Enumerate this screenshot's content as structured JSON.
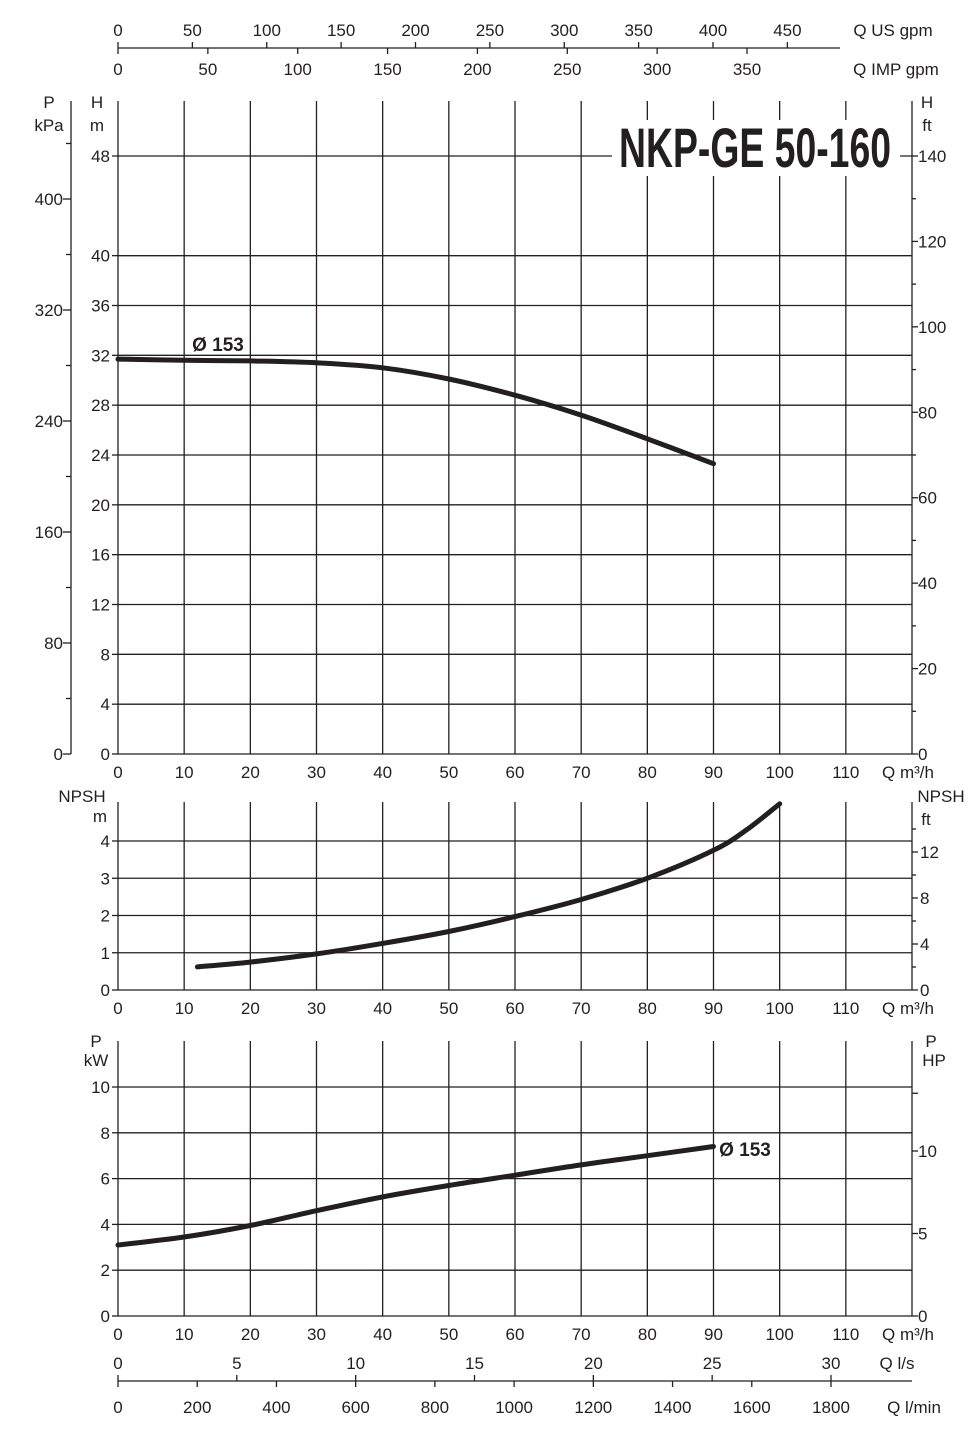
{
  "title": "NKP-GE 50-160",
  "top_axes": {
    "us_gpm": {
      "label": "Q US gpm",
      "ticks": [
        "0",
        "50",
        "100",
        "150",
        "200",
        "250",
        "300",
        "350",
        "400",
        "450"
      ]
    },
    "imp_gpm": {
      "label": "Q IMP gpm",
      "ticks": [
        "0",
        "50",
        "100",
        "150",
        "200",
        "250",
        "300",
        "350"
      ]
    }
  },
  "bottom_axes": {
    "ls": {
      "label": "Q l/s",
      "ticks": [
        "0",
        "5",
        "10",
        "15",
        "20",
        "25",
        "30"
      ]
    },
    "lmin": {
      "label": "Q l/min",
      "ticks": [
        "0",
        "200",
        "400",
        "600",
        "800",
        "1000",
        "1200",
        "1400",
        "1600",
        "1800"
      ]
    }
  },
  "colors": {
    "ink": "#231f20",
    "background": "#ffffff"
  },
  "chart_data": [
    {
      "type": "line",
      "name": "head",
      "xlabel": "Q m³/h",
      "ylabel": "H m",
      "x_ticks": [
        "0",
        "10",
        "20",
        "30",
        "40",
        "50",
        "60",
        "70",
        "80",
        "90",
        "100",
        "110"
      ],
      "xlim": [
        0,
        120
      ],
      "ylim": [
        0,
        48
      ],
      "y_ticks": [
        "0",
        "4",
        "8",
        "12",
        "16",
        "20",
        "24",
        "28",
        "32",
        "36",
        "40",
        "48"
      ],
      "grid": true,
      "secondary_left_axis": {
        "label_top": "P",
        "label_unit": "kPa",
        "ticks": [
          "0",
          "80",
          "160",
          "240",
          "320",
          "400"
        ]
      },
      "right_axis": {
        "label_top": "H",
        "label_unit": "ft",
        "ticks": [
          "0",
          "20",
          "40",
          "60",
          "80",
          "100",
          "120",
          "140"
        ]
      },
      "series": [
        {
          "name": "Ø 153",
          "x": [
            0,
            10,
            20,
            30,
            40,
            50,
            60,
            70,
            80,
            90
          ],
          "y": [
            31.7,
            31.6,
            31.55,
            31.4,
            31.0,
            30.1,
            28.8,
            27.2,
            25.3,
            23.3
          ]
        }
      ]
    },
    {
      "type": "line",
      "name": "npsh",
      "xlabel": "Q m³/h",
      "ylabel": "NPSH m",
      "x_ticks": [
        "0",
        "10",
        "20",
        "30",
        "40",
        "50",
        "60",
        "70",
        "80",
        "90",
        "100",
        "110"
      ],
      "xlim": [
        0,
        120
      ],
      "ylim": [
        0,
        5
      ],
      "y_ticks": [
        "0",
        "1",
        "2",
        "3",
        "4"
      ],
      "grid": true,
      "left_axis": {
        "label_top": "NPSH",
        "label_unit": "m"
      },
      "right_axis": {
        "label_top": "NPSH",
        "label_unit": "ft",
        "ticks": [
          "0",
          "4",
          "8",
          "12"
        ]
      },
      "series": [
        {
          "name": "",
          "x": [
            12,
            20,
            30,
            40,
            50,
            60,
            70,
            80,
            90,
            95,
            100
          ],
          "y": [
            0.62,
            0.75,
            0.97,
            1.25,
            1.57,
            1.97,
            2.43,
            3.0,
            3.75,
            4.3,
            5.0
          ]
        }
      ]
    },
    {
      "type": "line",
      "name": "power",
      "xlabel": "Q m³/h",
      "ylabel": "P kW",
      "x_ticks": [
        "0",
        "10",
        "20",
        "30",
        "40",
        "50",
        "60",
        "70",
        "80",
        "90",
        "100",
        "110"
      ],
      "xlim": [
        0,
        120
      ],
      "ylim": [
        0,
        12
      ],
      "y_ticks": [
        "0",
        "2",
        "4",
        "6",
        "8",
        "10"
      ],
      "grid": true,
      "left_axis": {
        "label_top": "P",
        "label_unit": "kW"
      },
      "right_axis": {
        "label_top": "P",
        "label_unit": "HP",
        "ticks": [
          "0",
          "5",
          "10"
        ]
      },
      "series": [
        {
          "name": "Ø 153",
          "x": [
            0,
            10,
            20,
            30,
            40,
            50,
            60,
            70,
            80,
            90
          ],
          "y": [
            3.1,
            3.45,
            3.95,
            4.6,
            5.2,
            5.7,
            6.15,
            6.6,
            7.0,
            7.4
          ]
        }
      ]
    }
  ]
}
